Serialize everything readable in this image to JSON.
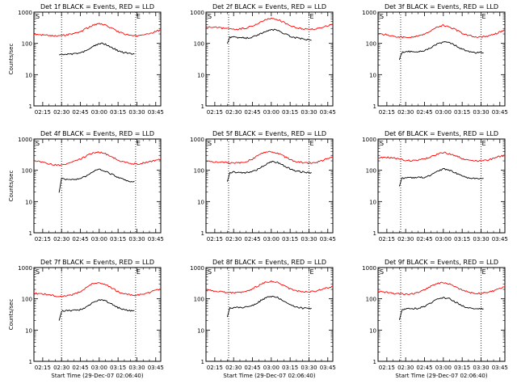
{
  "chart_data": {
    "type": "line",
    "scale": "log",
    "ylim": [
      1,
      1000
    ],
    "y_ticks": [
      1,
      10,
      100,
      1000
    ],
    "y_tick_labels": [
      "1",
      "10",
      "100",
      "1000"
    ],
    "x_tick_labels": [
      "02:15",
      "02:30",
      "02:45",
      "03:00",
      "03:15",
      "03:30",
      "03:45"
    ],
    "x_tick_minutes": [
      135,
      150,
      165,
      180,
      195,
      210,
      225
    ],
    "xlim_minutes": [
      128,
      229
    ],
    "colors": {
      "events": "#000000",
      "lld": "#ff0000"
    },
    "panels": [
      {
        "title": "Det 1f BLACK = Events, RED = LLD",
        "ylabel": "Counts/sec",
        "xlabel": "",
        "markers": [
          "S",
          "E"
        ],
        "dotted_lines_minutes": [
          150,
          209
        ],
        "series": [
          {
            "name": "LLD",
            "x": [
              128,
              135,
              140,
              145,
              150,
              155,
              160,
              165,
              170,
              175,
              180,
              185,
              190,
              195,
              200,
              205,
              210,
              215,
              220,
              225,
              229
            ],
            "y": [
              200,
              185,
              180,
              178,
              180,
              190,
              210,
              240,
              300,
              380,
              420,
              380,
              300,
              240,
              200,
              180,
              170,
              180,
              200,
              240,
              270
            ]
          },
          {
            "name": "Events",
            "x": [
              148,
              150,
              155,
              160,
              165,
              170,
              175,
              180,
              185,
              190,
              195,
              200,
              205,
              208
            ],
            "y": [
              42,
              45,
              46,
              46,
              50,
              60,
              80,
              100,
              95,
              75,
              58,
              50,
              47,
              46
            ]
          }
        ]
      },
      {
        "title": "Det 2f BLACK = Events, RED = LLD",
        "ylabel": "",
        "xlabel": "",
        "markers": [
          "S",
          "E"
        ],
        "dotted_lines_minutes": [
          146,
          210
        ],
        "series": [
          {
            "name": "LLD",
            "x": [
              128,
              135,
              140,
              145,
              150,
              155,
              160,
              165,
              170,
              175,
              180,
              185,
              190,
              195,
              200,
              205,
              210,
              215,
              220,
              225,
              229
            ],
            "y": [
              340,
              330,
              310,
              290,
              280,
              290,
              310,
              360,
              450,
              560,
              620,
              580,
              470,
              380,
              320,
              290,
              280,
              290,
              320,
              370,
              400
            ]
          },
          {
            "name": "Events",
            "x": [
              145,
              147,
              150,
              155,
              160,
              165,
              170,
              175,
              180,
              185,
              190,
              195,
              200,
              205,
              208,
              212
            ],
            "y": [
              100,
              160,
              160,
              150,
              150,
              160,
              190,
              240,
              280,
              260,
              210,
              170,
              150,
              140,
              130,
              125
            ]
          }
        ]
      },
      {
        "title": "Det 3f BLACK = Events, RED = LLD",
        "ylabel": "",
        "xlabel": "",
        "markers": [
          "S",
          "E"
        ],
        "dotted_lines_minutes": [
          146,
          210
        ],
        "series": [
          {
            "name": "LLD",
            "x": [
              128,
              135,
              140,
              145,
              150,
              155,
              160,
              165,
              170,
              175,
              180,
              185,
              190,
              195,
              200,
              205,
              210,
              215,
              220,
              225,
              229
            ],
            "y": [
              200,
              190,
              170,
              160,
              155,
              160,
              170,
              200,
              250,
              330,
              380,
              340,
              270,
              210,
              180,
              165,
              160,
              170,
              190,
              230,
              260
            ]
          },
          {
            "name": "Events",
            "x": [
              145,
              147,
              150,
              155,
              160,
              165,
              170,
              175,
              180,
              185,
              190,
              195,
              200,
              205,
              208,
              212
            ],
            "y": [
              30,
              50,
              55,
              55,
              55,
              60,
              75,
              95,
              110,
              105,
              85,
              65,
              55,
              50,
              50,
              50
            ]
          }
        ]
      },
      {
        "title": "Det 4f BLACK = Events, RED = LLD",
        "ylabel": "Counts/sec",
        "xlabel": "",
        "markers": [
          "S",
          "E"
        ],
        "dotted_lines_minutes": [
          150,
          209
        ],
        "series": [
          {
            "name": "LLD",
            "x": [
              128,
              135,
              140,
              145,
              150,
              155,
              160,
              165,
              170,
              175,
              180,
              185,
              190,
              195,
              200,
              205,
              210,
              215,
              220,
              225,
              229
            ],
            "y": [
              200,
              180,
              160,
              150,
              150,
              160,
              190,
              230,
              290,
              360,
              380,
              340,
              270,
              210,
              180,
              165,
              160,
              170,
              190,
              210,
              230
            ]
          },
          {
            "name": "Events",
            "x": [
              148,
              150,
              155,
              160,
              165,
              170,
              175,
              180,
              185,
              190,
              195,
              200,
              205,
              208
            ],
            "y": [
              20,
              55,
              50,
              50,
              55,
              65,
              90,
              110,
              95,
              75,
              58,
              50,
              45,
              45
            ]
          }
        ]
      },
      {
        "title": "Det 5f BLACK = Events, RED = LLD",
        "ylabel": "",
        "xlabel": "",
        "markers": [
          "S",
          "E"
        ],
        "dotted_lines_minutes": [
          146,
          210
        ],
        "series": [
          {
            "name": "LLD",
            "x": [
              128,
              135,
              140,
              145,
              150,
              155,
              160,
              165,
              170,
              175,
              180,
              185,
              190,
              195,
              200,
              205,
              210,
              215,
              220,
              225,
              229
            ],
            "y": [
              190,
              185,
              180,
              175,
              170,
              175,
              190,
              230,
              300,
              380,
              400,
              360,
              280,
              220,
              190,
              175,
              170,
              175,
              200,
              240,
              270
            ]
          },
          {
            "name": "Events",
            "x": [
              145,
              147,
              150,
              155,
              160,
              165,
              170,
              175,
              180,
              185,
              190,
              195,
              200,
              205,
              208,
              212
            ],
            "y": [
              45,
              85,
              88,
              85,
              85,
              90,
              110,
              150,
              190,
              180,
              140,
              110,
              95,
              88,
              85,
              85
            ]
          }
        ]
      },
      {
        "title": "Det 6f BLACK = Events, RED = LLD",
        "ylabel": "",
        "xlabel": "",
        "markers": [
          "S",
          "E"
        ],
        "dotted_lines_minutes": [
          146,
          210
        ],
        "series": [
          {
            "name": "LLD",
            "x": [
              128,
              135,
              140,
              145,
              150,
              155,
              160,
              165,
              170,
              175,
              180,
              185,
              190,
              195,
              200,
              205,
              210,
              215,
              220,
              225,
              229
            ],
            "y": [
              250,
              260,
              250,
              230,
              210,
              205,
              210,
              230,
              270,
              330,
              370,
              340,
              290,
              240,
              210,
              200,
              200,
              210,
              240,
              280,
              300
            ]
          },
          {
            "name": "Events",
            "x": [
              145,
              147,
              150,
              155,
              160,
              165,
              170,
              175,
              180,
              185,
              190,
              195,
              200,
              205,
              208,
              212
            ],
            "y": [
              30,
              55,
              58,
              58,
              58,
              60,
              70,
              90,
              110,
              100,
              80,
              65,
              58,
              55,
              55,
              55
            ]
          }
        ]
      },
      {
        "title": "Det 7f BLACK = Events, RED = LLD",
        "ylabel": "Counts/sec",
        "xlabel": "Start Time (29-Dec-07 02:06:40)",
        "markers": [
          "S",
          "E"
        ],
        "dotted_lines_minutes": [
          150,
          209
        ],
        "series": [
          {
            "name": "LLD",
            "x": [
              128,
              135,
              140,
              145,
              150,
              155,
              160,
              165,
              170,
              175,
              180,
              185,
              190,
              195,
              200,
              205,
              210,
              215,
              220,
              225,
              229
            ],
            "y": [
              150,
              145,
              135,
              125,
              120,
              125,
              140,
              170,
              230,
              310,
              330,
              290,
              220,
              170,
              145,
              135,
              130,
              140,
              160,
              190,
              210
            ]
          },
          {
            "name": "Events",
            "x": [
              148,
              150,
              155,
              160,
              165,
              170,
              175,
              180,
              185,
              190,
              195,
              200,
              205,
              208
            ],
            "y": [
              20,
              40,
              42,
              42,
              45,
              55,
              75,
              95,
              85,
              68,
              52,
              45,
              42,
              42
            ]
          }
        ]
      },
      {
        "title": "Det 8f BLACK = Events, RED = LLD",
        "ylabel": "",
        "xlabel": "Start Time (29-Dec-07 02:06:40)",
        "markers": [
          "S",
          "E"
        ],
        "dotted_lines_minutes": [
          146,
          210
        ],
        "series": [
          {
            "name": "LLD",
            "x": [
              128,
              135,
              140,
              145,
              150,
              155,
              160,
              165,
              170,
              175,
              180,
              185,
              190,
              195,
              200,
              205,
              210,
              215,
              220,
              225,
              229
            ],
            "y": [
              190,
              180,
              170,
              160,
              155,
              160,
              175,
              210,
              270,
              340,
              370,
              330,
              260,
              210,
              180,
              170,
              165,
              175,
              200,
              230,
              250
            ]
          },
          {
            "name": "Events",
            "x": [
              145,
              147,
              150,
              155,
              160,
              165,
              170,
              175,
              180,
              185,
              190,
              195,
              200,
              205,
              208,
              212
            ],
            "y": [
              25,
              50,
              52,
              52,
              55,
              62,
              80,
              105,
              120,
              110,
              85,
              65,
              55,
              50,
              50,
              50
            ]
          }
        ]
      },
      {
        "title": "Det 9f BLACK = Events, RED = LLD",
        "ylabel": "",
        "xlabel": "Start Time (29-Dec-07 02:06:40)",
        "markers": [
          "S",
          "E"
        ],
        "dotted_lines_minutes": [
          146,
          210
        ],
        "series": [
          {
            "name": "LLD",
            "x": [
              128,
              135,
              140,
              145,
              150,
              155,
              160,
              165,
              170,
              175,
              180,
              185,
              190,
              195,
              200,
              205,
              210,
              215,
              220,
              225,
              229
            ],
            "y": [
              170,
              160,
              150,
              145,
              140,
              145,
              160,
              195,
              250,
              310,
              340,
              300,
              240,
              190,
              165,
              155,
              150,
              160,
              180,
              210,
              240
            ]
          },
          {
            "name": "Events",
            "x": [
              145,
              147,
              150,
              155,
              160,
              165,
              170,
              175,
              180,
              185,
              190,
              195,
              200,
              205,
              208,
              212
            ],
            "y": [
              20,
              45,
              48,
              48,
              50,
              58,
              75,
              100,
              110,
              100,
              78,
              60,
              52,
              48,
              48,
              48
            ]
          }
        ]
      }
    ]
  }
}
